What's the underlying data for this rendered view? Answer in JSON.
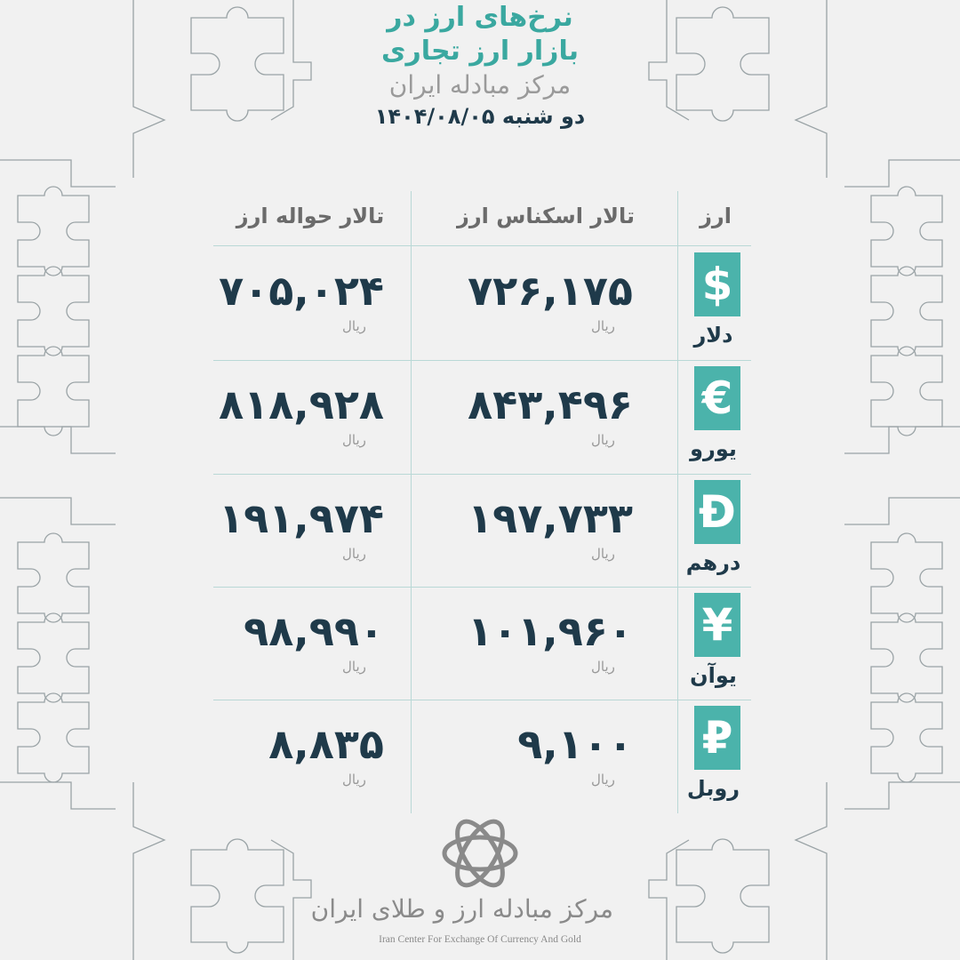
{
  "header": {
    "title_line1": "نرخ‌های ارز در",
    "title_line2": "بازار ارز تجاری",
    "subtitle": "مرکز مبادله ایران",
    "date": "دو شنبه ۱۴۰۴/۰۸/۰۵"
  },
  "colors": {
    "accent": "#4bb3ab",
    "text_dark": "#1f3a4a",
    "background": "#f1f1f1"
  },
  "table": {
    "columns": {
      "currency": "ارز",
      "exchange_hall": "تالار اسکناس ارز",
      "remittance_hall": "تالار حواله ارز"
    },
    "unit": "ریال",
    "rows": [
      {
        "icon": "$",
        "icon_name": "dollar-icon",
        "name": "دلار",
        "exchange": "۷۲۶,۱۷۵",
        "remittance": "۷۰۵,۰۲۴"
      },
      {
        "icon": "€",
        "icon_name": "euro-icon",
        "name": "یورو",
        "exchange": "۸۴۳,۴۹۶",
        "remittance": "۸۱۸,۹۲۸"
      },
      {
        "icon": "Đ",
        "icon_name": "dirham-icon",
        "name": "درهم",
        "exchange": "۱۹۷,۷۳۳",
        "remittance": "۱۹۱,۹۷۴"
      },
      {
        "icon": "¥",
        "icon_name": "yuan-icon",
        "name": "یوآن",
        "exchange": "۱۰۱,۹۶۰",
        "remittance": "۹۸,۹۹۰"
      },
      {
        "icon": "₽",
        "icon_name": "ruble-icon",
        "name": "روبل",
        "exchange": "۹,۱۰۰",
        "remittance": "۸,۸۳۵"
      }
    ]
  },
  "footer": {
    "logo_text_fa": "مرکز مبادله ارز و طلای ایران",
    "logo_text_en": "Iran Center For Exchange Of Currency And Gold"
  }
}
